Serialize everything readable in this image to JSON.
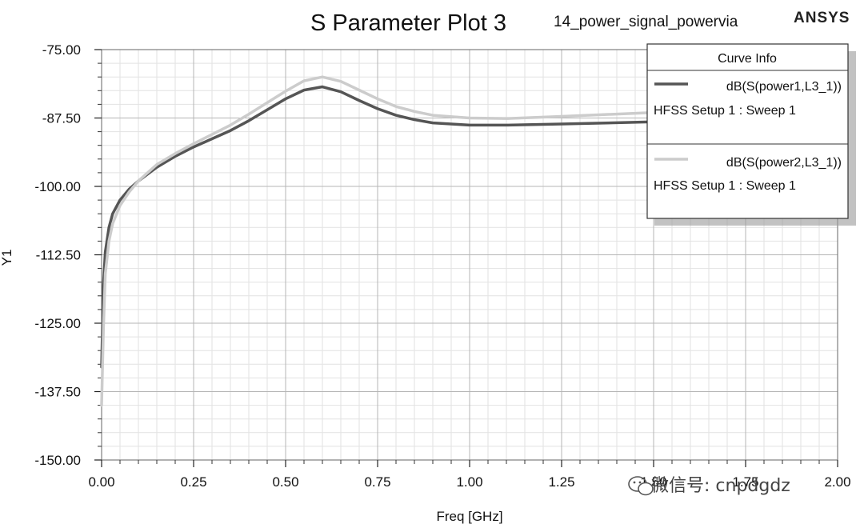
{
  "header": {
    "title": "S Parameter Plot 3",
    "design_name": "14_power_signal_powervia",
    "brand": "ANSYS"
  },
  "chart_data": {
    "type": "line",
    "title": "S Parameter Plot 3",
    "xlabel": "Freq [GHz]",
    "ylabel": "Y1",
    "xlim": [
      0.0,
      2.0
    ],
    "ylim": [
      -150.0,
      -75.0
    ],
    "x_ticks": [
      "0.00",
      "0.25",
      "0.50",
      "0.75",
      "1.00",
      "1.25",
      "1.50",
      "1.75",
      "2.00"
    ],
    "y_ticks": [
      "-75.00",
      "-87.50",
      "-100.00",
      "-112.50",
      "-125.00",
      "-137.50",
      "-150.00"
    ],
    "grid": true,
    "legend_position": "top-right",
    "series": [
      {
        "name": "dB(S(power1,L3_1))",
        "setup": "HFSS Setup 1 : Sweep 1",
        "color": "#555555",
        "x": [
          0.0,
          0.005,
          0.01,
          0.02,
          0.03,
          0.05,
          0.075,
          0.1,
          0.15,
          0.2,
          0.25,
          0.3,
          0.35,
          0.4,
          0.45,
          0.5,
          0.55,
          0.6,
          0.65,
          0.7,
          0.75,
          0.8,
          0.85,
          0.9,
          1.0,
          1.1,
          1.25,
          1.5,
          1.75,
          2.0
        ],
        "y": [
          -133.0,
          -118.0,
          -112.0,
          -107.5,
          -105.0,
          -102.5,
          -100.5,
          -99.0,
          -96.5,
          -94.5,
          -92.8,
          -91.3,
          -89.8,
          -88.0,
          -86.0,
          -84.0,
          -82.4,
          -81.8,
          -82.7,
          -84.3,
          -85.8,
          -87.0,
          -87.8,
          -88.4,
          -88.8,
          -88.8,
          -88.6,
          -88.2,
          -88.0,
          -87.8
        ]
      },
      {
        "name": "dB(S(power2,L3_1))",
        "setup": "HFSS Setup 1 : Sweep 1",
        "color": "#cccccc",
        "x": [
          0.0,
          0.005,
          0.01,
          0.02,
          0.03,
          0.05,
          0.075,
          0.1,
          0.15,
          0.2,
          0.25,
          0.3,
          0.35,
          0.4,
          0.45,
          0.5,
          0.55,
          0.6,
          0.65,
          0.7,
          0.75,
          0.8,
          0.85,
          0.9,
          1.0,
          1.1,
          1.25,
          1.5,
          1.75,
          2.0
        ],
        "y": [
          -140.0,
          -126.0,
          -116.0,
          -110.0,
          -106.8,
          -103.5,
          -101.0,
          -99.0,
          -96.0,
          -94.0,
          -92.2,
          -90.5,
          -88.8,
          -86.8,
          -84.7,
          -82.6,
          -80.7,
          -80.0,
          -80.8,
          -82.4,
          -84.0,
          -85.4,
          -86.3,
          -87.0,
          -87.5,
          -87.6,
          -87.2,
          -86.5,
          -86.0,
          -85.8
        ]
      }
    ]
  },
  "legend": {
    "heading": "Curve Info"
  },
  "watermark": {
    "text": "微信号: cnpdgdz"
  }
}
